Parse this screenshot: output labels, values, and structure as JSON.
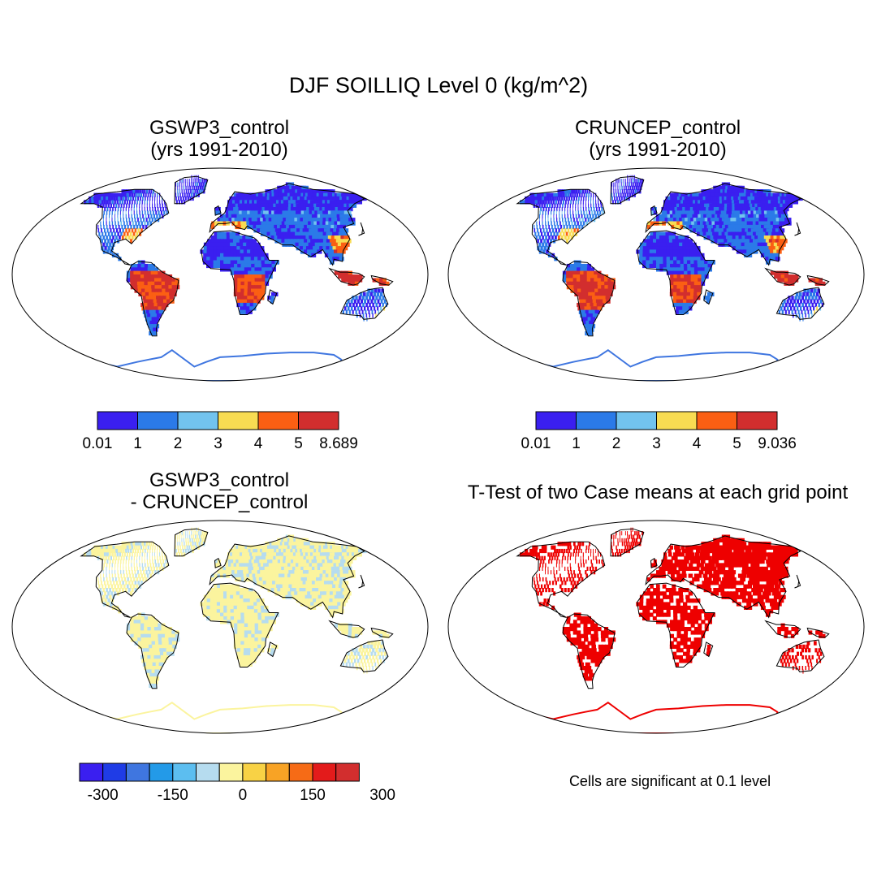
{
  "title": "DJF SOILLIQ Level 0 (kg/m^2)",
  "panels": [
    {
      "id": "gswp3",
      "title_line1": "GSWP3_control",
      "title_line2": "(yrs 1991-2010)",
      "type": "absolute",
      "colorbar": {
        "colors": [
          "#3a1ff0",
          "#2b7ae8",
          "#72c3ee",
          "#f8dc52",
          "#fb5f13",
          "#d22e2e"
        ],
        "labels": [
          "0.01",
          "1",
          "2",
          "3",
          "4",
          "5",
          "8.689"
        ]
      }
    },
    {
      "id": "cruncep",
      "title_line1": "CRUNCEP_control",
      "title_line2": "(yrs 1991-2010)",
      "type": "absolute",
      "colorbar": {
        "colors": [
          "#3a1ff0",
          "#2b7ae8",
          "#72c3ee",
          "#f8dc52",
          "#fb5f13",
          "#d22e2e"
        ],
        "labels": [
          "0.01",
          "1",
          "2",
          "3",
          "4",
          "5",
          "9.036"
        ]
      }
    },
    {
      "id": "difference",
      "title_line1": "GSWP3_control",
      "title_line2": "- CRUNCEP_control",
      "type": "difference",
      "colorbar": {
        "colors": [
          "#3a1ff0",
          "#1f3ce6",
          "#3f76e0",
          "#239ae8",
          "#5cbef0",
          "#b6dcef",
          "#fbf49e",
          "#f8d245",
          "#f8a325",
          "#f66b16",
          "#e31b1b",
          "#d22e2e"
        ],
        "labels": [
          "-300",
          "-150",
          "0",
          "150",
          "300"
        ]
      }
    },
    {
      "id": "ttest",
      "title_line1": "T-Test of two Case means at each grid point",
      "type": "significance",
      "note": "Cells are significant at 0.1 level",
      "significant_color": "#ee0000"
    }
  ]
}
